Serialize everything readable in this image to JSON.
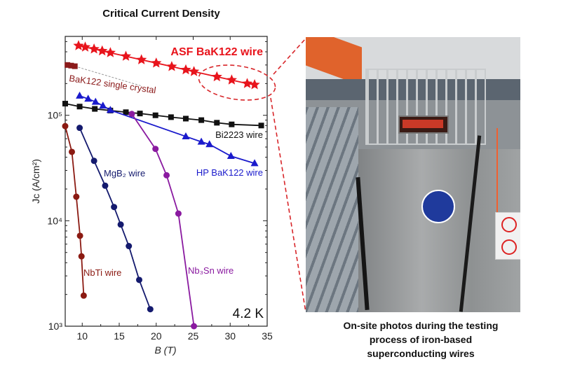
{
  "chart_data": {
    "type": "line",
    "title": "Critical Current Density",
    "xlabel": "B (T)",
    "ylabel": "Jc (A/cm²)",
    "xscale": "linear",
    "yscale": "log",
    "xlim": [
      7.7,
      35
    ],
    "ylim": [
      1000,
      560000
    ],
    "xticks": [
      10,
      15,
      20,
      25,
      30,
      35
    ],
    "yticks": [
      {
        "v": 1000,
        "label": "10³"
      },
      {
        "v": 10000,
        "label": "10⁴"
      },
      {
        "v": 100000,
        "label": "10⁵"
      }
    ],
    "annotation": "4.2 K",
    "series": [
      {
        "name": "ASF BaK122 wire",
        "color": "#e8141c",
        "marker": "star",
        "x": [
          9.5,
          10.4,
          11.6,
          12.7,
          13.8,
          15.9,
          18.0,
          20.0,
          22.1,
          24.0,
          25.1,
          28.2,
          30.2,
          32.3,
          33.3
        ],
        "y": [
          457000,
          443000,
          425000,
          408000,
          392000,
          363000,
          336000,
          313000,
          290000,
          270000,
          260000,
          232000,
          216000,
          200000,
          195000
        ]
      },
      {
        "name": "BaK122 single crystal",
        "color": "#8b1a1a",
        "marker": "square",
        "x": [
          8.0,
          8.5,
          9.0
        ],
        "y": [
          300000,
          296000,
          292000
        ],
        "trend_x": [
          9.0,
          18.0
        ],
        "trend_y": [
          292000,
          190000
        ]
      },
      {
        "name": "Bi2223 wire",
        "color": "#111111",
        "marker": "square",
        "x": [
          7.7,
          9.65,
          11.7,
          13.8,
          15.9,
          17.8,
          19.9,
          22.0,
          24.0,
          26.1,
          28.2,
          30.2,
          34.2
        ],
        "y": [
          129000,
          121000,
          115000,
          111000,
          107000,
          104000,
          100000,
          96000,
          93000,
          90000,
          85000,
          82000,
          80000
        ]
      },
      {
        "name": "HP BaK122 wire",
        "color": "#1a1acc",
        "marker": "triangle",
        "x": [
          9.65,
          10.8,
          11.8,
          12.8,
          13.8,
          24.0,
          26.1,
          27.2,
          30.1,
          33.3
        ],
        "y": [
          153000,
          143000,
          134000,
          123000,
          112000,
          63000,
          56000,
          53000,
          41000,
          35000
        ]
      },
      {
        "name": "MgB₂ wire",
        "color": "#141a6e",
        "marker": "circle",
        "x": [
          9.65,
          11.6,
          13.1,
          14.3,
          15.2,
          16.3,
          17.7,
          19.2
        ],
        "y": [
          76000,
          37000,
          21500,
          13500,
          9200,
          5750,
          2750,
          1450
        ]
      },
      {
        "name": "NbTi wire",
        "color": "#8b1a12",
        "marker": "circle",
        "x": [
          7.7,
          8.6,
          9.2,
          9.7,
          9.9,
          10.2
        ],
        "y": [
          79000,
          45000,
          16900,
          7200,
          4600,
          1950
        ]
      },
      {
        "name": "Nb₃Sn wire",
        "color": "#8a1aa0",
        "marker": "circle",
        "x": [
          16.7,
          19.9,
          21.4,
          23.0,
          25.1
        ],
        "y": [
          103000,
          48000,
          27000,
          11700,
          1000
        ]
      }
    ]
  },
  "photo": {
    "caption_lines": [
      "On-site photos during the testing",
      "process of iron-based",
      "superconducting wires"
    ]
  }
}
